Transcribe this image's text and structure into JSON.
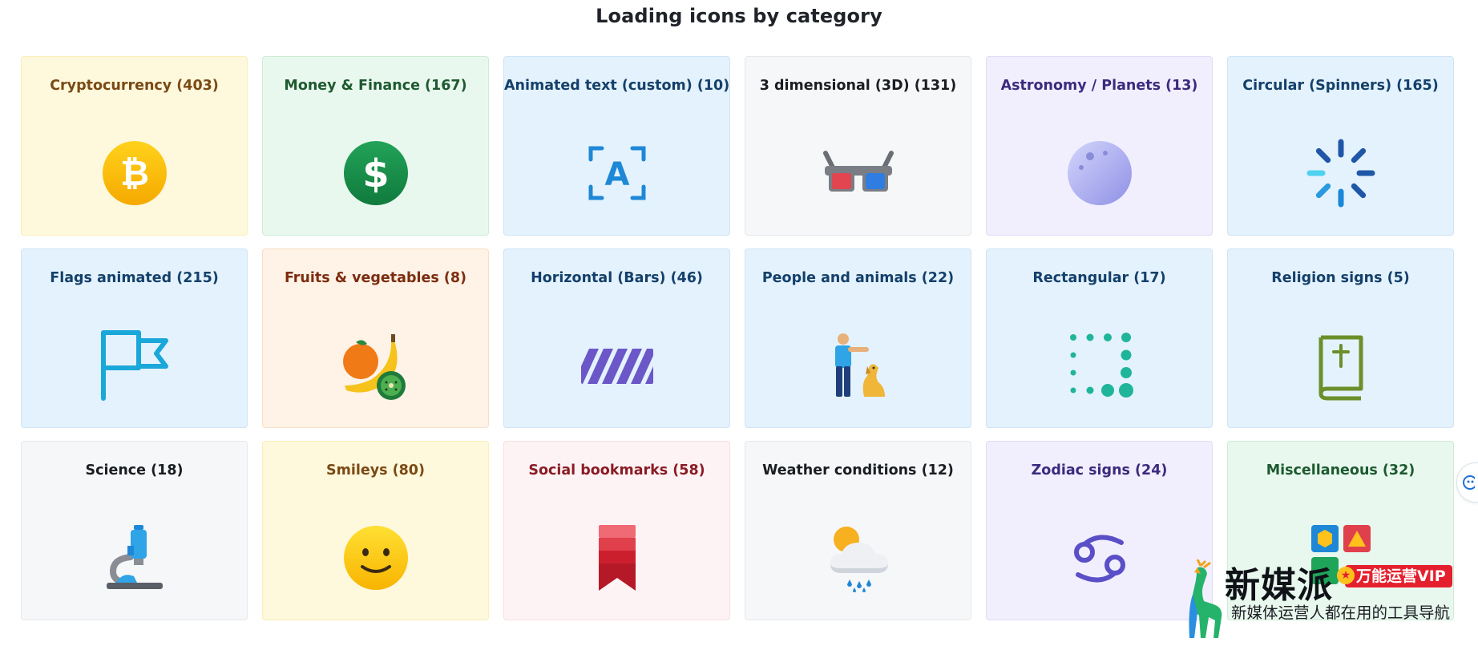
{
  "page": {
    "title": "Loading icons by category"
  },
  "categories": [
    {
      "label": "Cryptocurrency (403)",
      "icon": "bitcoin-icon",
      "theme": "yellow"
    },
    {
      "label": "Money & Finance (167)",
      "icon": "dollar-icon",
      "theme": "green"
    },
    {
      "label": "Animated text (custom) (10)",
      "icon": "text-scan-icon",
      "theme": "blue"
    },
    {
      "label": "3 dimensional (3D) (131)",
      "icon": "3d-glasses-icon",
      "theme": "gray"
    },
    {
      "label": "Astronomy / Planets (13)",
      "icon": "moon-icon",
      "theme": "purple"
    },
    {
      "label": "Circular (Spinners) (165)",
      "icon": "spinner-icon",
      "theme": "blue"
    },
    {
      "label": "Flags animated (215)",
      "icon": "flag-icon",
      "theme": "blue"
    },
    {
      "label": "Fruits & vegetables (8)",
      "icon": "fruits-icon",
      "theme": "orange"
    },
    {
      "label": "Horizontal (Bars) (46)",
      "icon": "striped-bar-icon",
      "theme": "blue"
    },
    {
      "label": "People and animals (22)",
      "icon": "person-dog-icon",
      "theme": "blue"
    },
    {
      "label": "Rectangular (17)",
      "icon": "dot-square-icon",
      "theme": "blue"
    },
    {
      "label": "Religion signs (5)",
      "icon": "bible-icon",
      "theme": "blue"
    },
    {
      "label": "Science (18)",
      "icon": "microscope-icon",
      "theme": "gray"
    },
    {
      "label": "Smileys (80)",
      "icon": "smiley-icon",
      "theme": "yellow"
    },
    {
      "label": "Social bookmarks (58)",
      "icon": "bookmark-icon",
      "theme": "red"
    },
    {
      "label": "Weather conditions (12)",
      "icon": "weather-icon",
      "theme": "gray"
    },
    {
      "label": "Zodiac signs (24)",
      "icon": "cancer-zodiac-icon",
      "theme": "purple"
    },
    {
      "label": "Miscellaneous (32)",
      "icon": "shapes-icon",
      "theme": "green"
    }
  ],
  "watermark": {
    "name": "新媒派",
    "badge": "万能运营VIP",
    "tagline": "新媒体运营人都在用的工具导航"
  }
}
